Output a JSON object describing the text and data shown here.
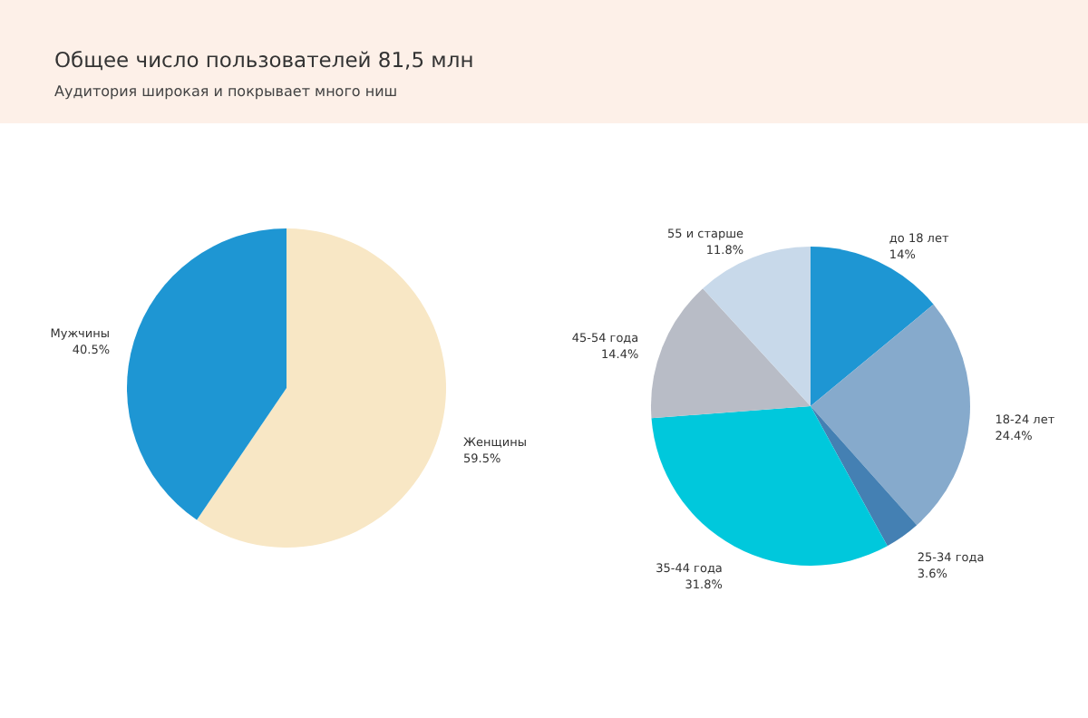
{
  "chart_data": [
    {
      "type": "pie",
      "title": "Общее число пользователей 81,5 млн",
      "subtitle": "Аудитория широкая и покрывает много ниш",
      "categories": [
        "Женщины",
        "Мужчины"
      ],
      "values": [
        59.5,
        40.5
      ],
      "value_labels": [
        "59.5%",
        "40.5%"
      ],
      "colors": [
        "#f8e7c5",
        "#1e96d3"
      ],
      "legend": false
    },
    {
      "type": "pie",
      "categories": [
        "до 18 лет",
        "18-24 лет",
        "25-34 года",
        "35-44 года",
        "45-54 года",
        "55 и старше"
      ],
      "values": [
        14,
        24.4,
        3.6,
        31.8,
        14.4,
        11.8
      ],
      "value_labels": [
        "14%",
        "24.4%",
        "3.6%",
        "31.8%",
        "14.4%",
        "11.8%"
      ],
      "colors": [
        "#1e96d3",
        "#86aacc",
        "#4480b3",
        "#00c8dc",
        "#b8bcc6",
        "#c8d9ea"
      ],
      "legend": false
    }
  ]
}
